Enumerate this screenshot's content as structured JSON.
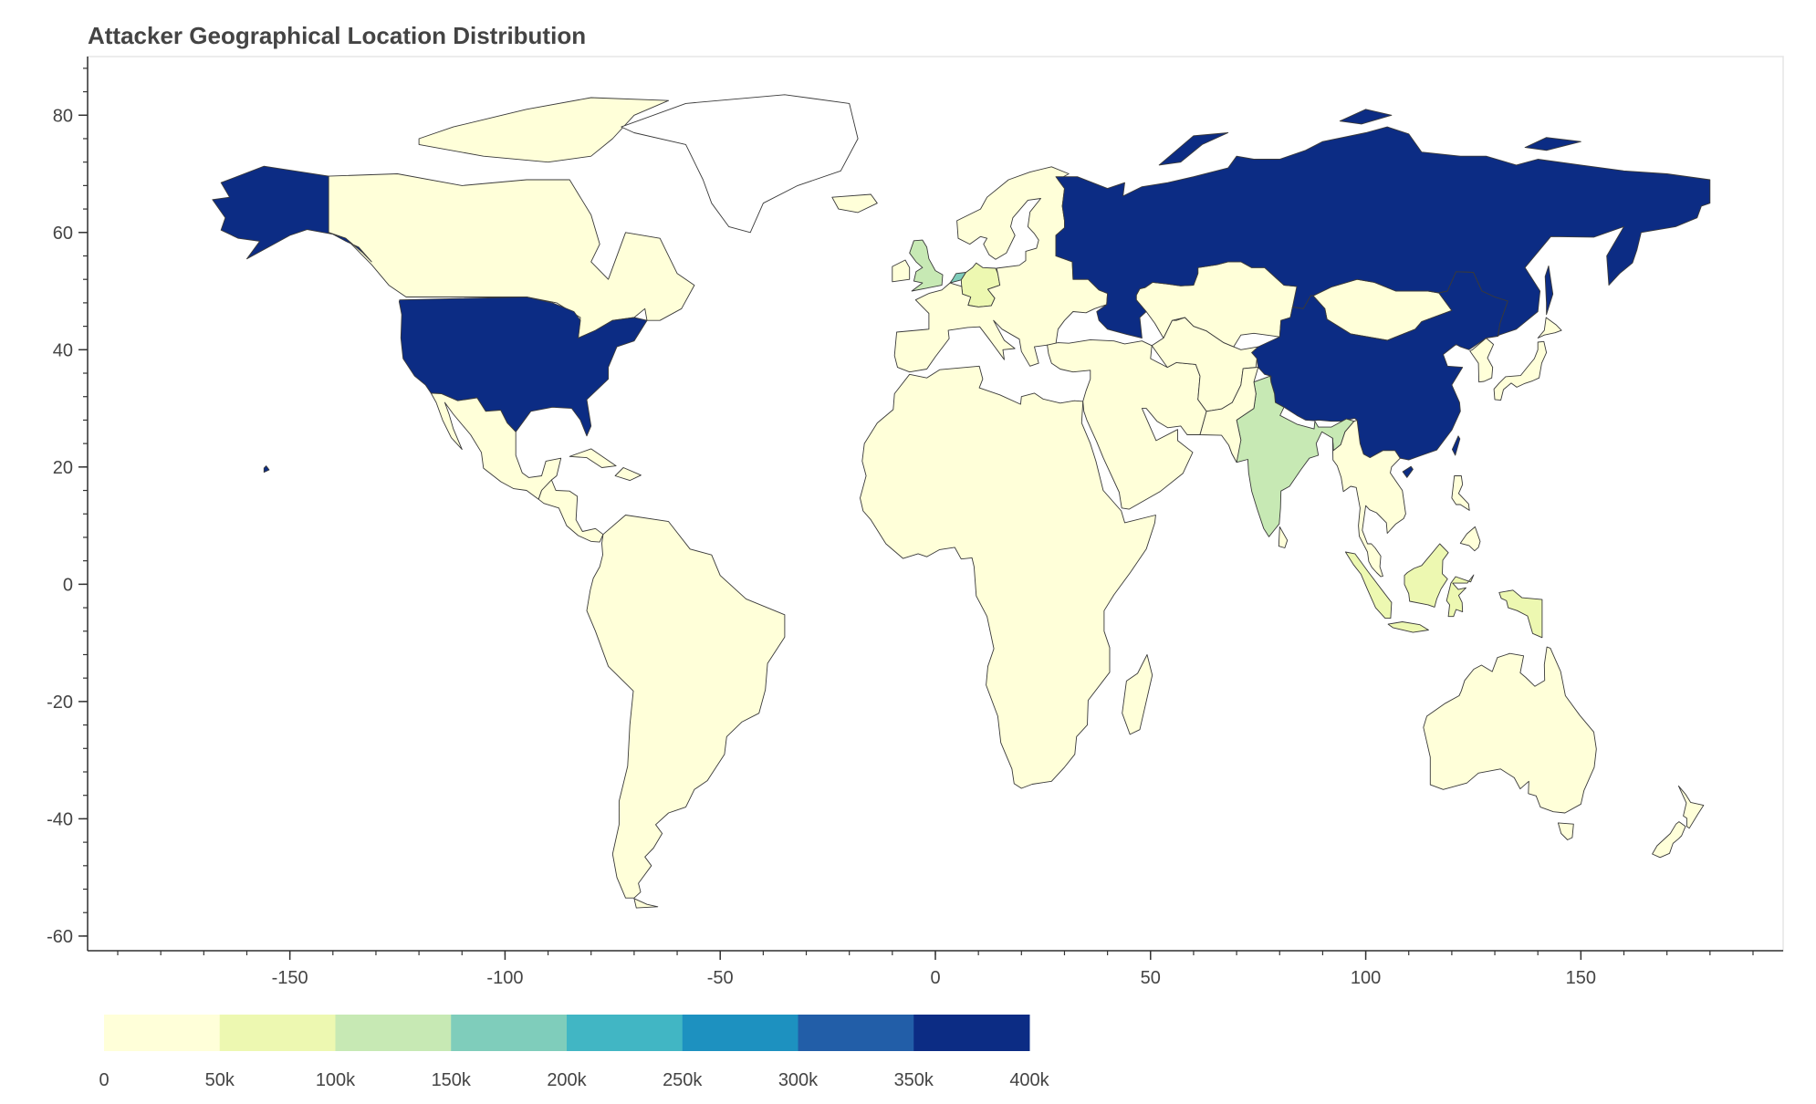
{
  "title": "Attacker Geographical Location Distribution",
  "chart_data": {
    "type": "choropleth",
    "xlim": [
      -197,
      197
    ],
    "ylim": [
      -62.5,
      90
    ],
    "x_ticks": [
      -150,
      -100,
      -50,
      0,
      50,
      100,
      150
    ],
    "y_ticks": [
      80,
      60,
      40,
      20,
      0,
      -20,
      -40,
      -60
    ],
    "x_tick_labels": [
      "-150",
      "-100",
      "-50",
      "0",
      "50",
      "100",
      "150"
    ],
    "y_tick_labels": [
      "80",
      "60",
      "40",
      "20",
      "0",
      "-20",
      "-40",
      "-60"
    ],
    "grid": false,
    "color_bar": {
      "placement": "bottom-left",
      "range": [
        0,
        400000
      ],
      "tick_labels": [
        "0",
        "50k",
        "100k",
        "150k",
        "200k",
        "250k",
        "300k",
        "350k",
        "400k"
      ],
      "colors": [
        "#ffffd9",
        "#edf8b1",
        "#c7e9b4",
        "#7fcdbb",
        "#41b6c4",
        "#1d91c0",
        "#225ea8",
        "#0c2c84"
      ]
    },
    "regions": [
      {
        "name": "United States",
        "bin": 7
      },
      {
        "name": "Alaska (United States)",
        "bin": 7
      },
      {
        "name": "Russia",
        "bin": 7
      },
      {
        "name": "China",
        "bin": 7
      },
      {
        "name": "India",
        "bin": 2
      },
      {
        "name": "United Kingdom",
        "bin": 2
      },
      {
        "name": "Netherlands",
        "bin": 3
      },
      {
        "name": "Germany",
        "bin": 1
      },
      {
        "name": "Indonesia",
        "bin": 1
      },
      {
        "name": "Canada",
        "bin": 0
      },
      {
        "name": "Mexico",
        "bin": 0
      },
      {
        "name": "South America",
        "bin": 0
      },
      {
        "name": "Africa",
        "bin": 0
      },
      {
        "name": "Europe (other)",
        "bin": 0
      },
      {
        "name": "Middle East",
        "bin": 0
      },
      {
        "name": "Kazakhstan",
        "bin": 0
      },
      {
        "name": "Mongolia",
        "bin": 0
      },
      {
        "name": "Southeast Asia",
        "bin": 0
      },
      {
        "name": "Japan",
        "bin": 0
      },
      {
        "name": "Australia",
        "bin": 0
      },
      {
        "name": "New Zealand",
        "bin": 0
      },
      {
        "name": "Madagascar",
        "bin": 0
      },
      {
        "name": "Iceland",
        "bin": 0
      },
      {
        "name": "Greenland",
        "bin": null
      }
    ]
  }
}
